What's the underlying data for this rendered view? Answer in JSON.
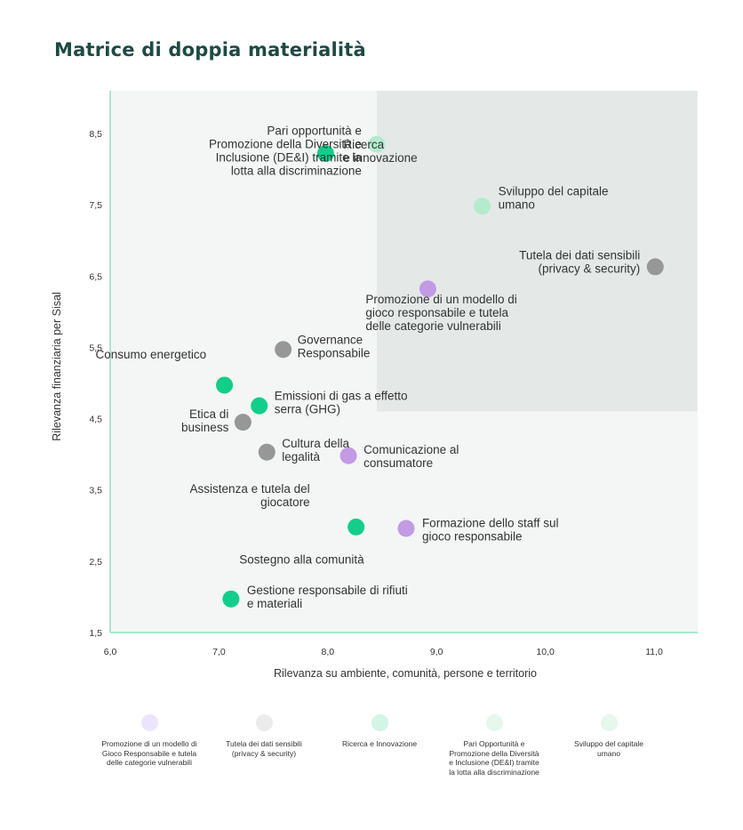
{
  "chart_data": {
    "type": "scatter",
    "title": "Matrice di doppia materialità",
    "xlabel": "Rilevanza su ambiente, comunità, persone e territorio",
    "ylabel": "Rilevanza finanziaria per Sisal",
    "xlim": [
      6.0,
      11.4
    ],
    "ylim": [
      1.5,
      9.1
    ],
    "x_ticks": [
      "6,0",
      "7,0",
      "8,0",
      "9,0",
      "10,0",
      "11,0"
    ],
    "y_ticks": [
      "1,5",
      "2,5",
      "3,5",
      "4,5",
      "5,5",
      "6,5",
      "7,5",
      "8,5"
    ],
    "quadrant_split": {
      "x": 8.45,
      "y": 4.6
    },
    "colors": {
      "green": "#10cf8a",
      "light_green": "#b3eccd",
      "gray": "#979797",
      "purple": "#c39ae4",
      "axis": "#8fe1c0",
      "bg_light": "#f4f6f5",
      "bg_dark": "#e4e9e8"
    },
    "points": [
      {
        "name": "Pari opportunità e Promozione della Diversità e Inclusione (DE&I) tramite la lotta alla discriminazione",
        "x": 8.45,
        "y": 8.35,
        "color": "light_green",
        "label_lines": [
          "Pari opportunità e",
          "Promozione della Diversità e",
          "Inclusione (DE&I) tramite la",
          "lotta alla discriminazione"
        ]
      },
      {
        "name": "Ricerca e innovazione",
        "x": 7.98,
        "y": 8.22,
        "color": "green",
        "label_lines": [
          "Ricerca",
          "e innovazione"
        ]
      },
      {
        "name": "Sviluppo del capitale umano",
        "x": 9.42,
        "y": 7.48,
        "color": "light_green",
        "label_lines": [
          "Sviluppo del capitale",
          "umano"
        ]
      },
      {
        "name": "Tutela dei dati sensibili (privacy & security)",
        "x": 11.01,
        "y": 6.63,
        "color": "gray",
        "label_lines": [
          "Tutela dei dati sensibili",
          "(privacy & security)"
        ]
      },
      {
        "name": "Promozione di un modello di gioco responsabile e tutela delle categorie vulnerabili",
        "x": 8.92,
        "y": 6.32,
        "color": "purple",
        "label_lines": [
          "Promozione di un modello di",
          "gioco responsabile e tutela",
          "delle categorie vulnerabili"
        ]
      },
      {
        "name": "Governance Responsabile",
        "x": 7.59,
        "y": 5.47,
        "color": "gray",
        "label_lines": [
          "Governance",
          "Responsabile"
        ]
      },
      {
        "name": "Consumo energetico",
        "x": 7.05,
        "y": 4.97,
        "color": "green",
        "label_lines": [
          "Consumo energetico"
        ]
      },
      {
        "name": "Emissioni di gas a effetto serra (GHG)",
        "x": 7.37,
        "y": 4.68,
        "color": "green",
        "label_lines": [
          "Emissioni di gas a effetto",
          "serra (GHG)"
        ]
      },
      {
        "name": "Etica di business",
        "x": 7.22,
        "y": 4.45,
        "color": "gray",
        "label_lines": [
          "Etica di",
          "business"
        ]
      },
      {
        "name": "Cultura della legalità",
        "x": 7.44,
        "y": 4.03,
        "color": "gray",
        "label_lines": [
          "Cultura della",
          "legalità"
        ]
      },
      {
        "name": "Comunicazione al consumatore",
        "x": 8.19,
        "y": 3.98,
        "color": "purple",
        "label_lines": [
          "Comunicazione al",
          "consumatore"
        ]
      },
      {
        "name": "Assistenza e tutela del giocatore",
        "x": 8.26,
        "y": 2.98,
        "color": "green",
        "label_lines": [
          "Assistenza e tutela del",
          "giocatore"
        ]
      },
      {
        "name": "Formazione dello staff sul gioco responsabile",
        "x": 8.72,
        "y": 2.96,
        "color": "purple",
        "label_lines": [
          "Formazione  dello  staff  sul",
          "gioco responsabile"
        ]
      },
      {
        "name": "Sostegno alla comunità",
        "x": 8.26,
        "y": 2.98,
        "color": "green",
        "label_lines": [
          "Sostegno alla comunità"
        ]
      },
      {
        "name": "Gestione responsabile di rifiuti e materiali",
        "x": 7.11,
        "y": 1.97,
        "color": "green",
        "label_lines": [
          "Gestione responsabile di rifiuti",
          "e materiali"
        ]
      }
    ]
  },
  "legend": [
    {
      "lines": [
        "Promozione di un modello di",
        "Gioco Responsabile e tutela",
        "delle categorie vulnerabili"
      ],
      "color": "#ebe5fb"
    },
    {
      "lines": [
        "Tutela dei dati sensibili",
        "(privacy & security)"
      ],
      "color": "#ebebeb"
    },
    {
      "lines": [
        "Ricerca e Innovazione"
      ],
      "color": "#d2f5e6"
    },
    {
      "lines": [
        "Pari Opportunità e",
        "Promozione della Diversità",
        "e Inclusione (DE&I) tramite",
        "la lotta alla discriminazione"
      ],
      "color": "#e4f8ee"
    },
    {
      "lines": [
        "Sviluppo del capitale",
        "umano"
      ],
      "color": "#e4f8ee"
    }
  ]
}
